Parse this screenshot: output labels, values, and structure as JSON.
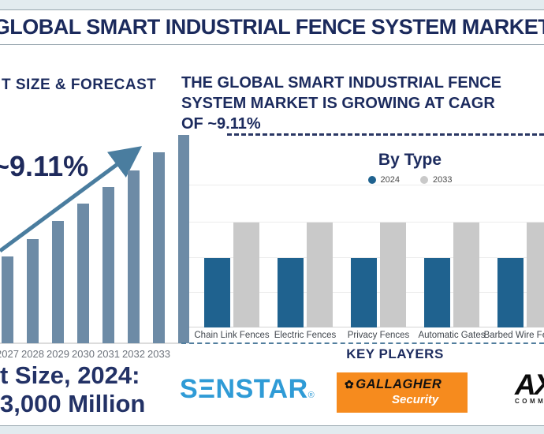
{
  "colors": {
    "navy": "#1c2b5e",
    "steel_blue": "#6d8ba6",
    "arrow_blue": "#4a7d9f",
    "bar_2024_blue": "#1f628f",
    "bar_2033_gray": "#c9c9c9",
    "gridline": "#ececec",
    "axis_line": "#d5d5d5",
    "dashed_separator": "#527e9e",
    "senstar_blue": "#2f9bd6",
    "gallagher_orange": "#f68b1e",
    "band_blue": "#e2ebef"
  },
  "header": {
    "title": "GLOBAL SMART INDUSTRIAL FENCE SYSTEM MARKET"
  },
  "left_panel": {
    "heading": "T SIZE & FORECAST",
    "cagr_annotation": "~9.11%",
    "market_size_line1": "t Size, 2024:",
    "market_size_line2": "3,000 Million"
  },
  "right_panel": {
    "headline_lines": [
      "THE GLOBAL SMART INDUSTRIAL FENCE",
      "SYSTEM MARKET IS GROWING AT CAGR",
      "OF ~9.11%"
    ],
    "by_type": {
      "title": "By Type",
      "legend": [
        {
          "label": "2024",
          "color": "#1f628f"
        },
        {
          "label": "2033",
          "color": "#c9c9c9"
        }
      ]
    },
    "key_players": {
      "title": "KEY PLAYERS",
      "logos": [
        {
          "id": "senstar",
          "text": "SΞNSTAR",
          "mark": "®"
        },
        {
          "id": "gallagher",
          "line1": "GALLAGHER",
          "line2": "Security",
          "icon": "✿"
        },
        {
          "id": "axis",
          "text": "AX",
          "subtext": "COMM"
        }
      ]
    }
  },
  "chart_data": [
    {
      "type": "bar",
      "panel": "left",
      "title": "T SIZE & FORECAST",
      "categories": [
        "2027",
        "2028",
        "2029",
        "2030",
        "2031",
        "2032",
        "2033"
      ],
      "values": [
        110,
        132,
        155,
        177,
        198,
        219,
        242
      ],
      "units": "relative height (no value axis shown)",
      "partial_next_bar_value": 264,
      "annotation": "~9.11%",
      "trend_arrow": true,
      "bar_color": "#6d8ba6",
      "value_axis": "none",
      "note": "years before 2027 cropped off left edge of screenshot"
    },
    {
      "type": "bar",
      "panel": "right",
      "title": "By Type",
      "categories": [
        "Chain Link Fences",
        "Electric Fences",
        "Privacy Fences",
        "Automatic Gates",
        "Barbed Wire Fences"
      ],
      "series": [
        {
          "name": "2024",
          "color": "#1f628f",
          "values": [
            88,
            88,
            88,
            88,
            88
          ]
        },
        {
          "name": "2033",
          "color": "#c9c9c9",
          "values": [
            133,
            133,
            133,
            133,
            133
          ]
        }
      ],
      "units": "relative height (no value axis shown)",
      "gridlines": true,
      "legend_position": "top"
    }
  ]
}
